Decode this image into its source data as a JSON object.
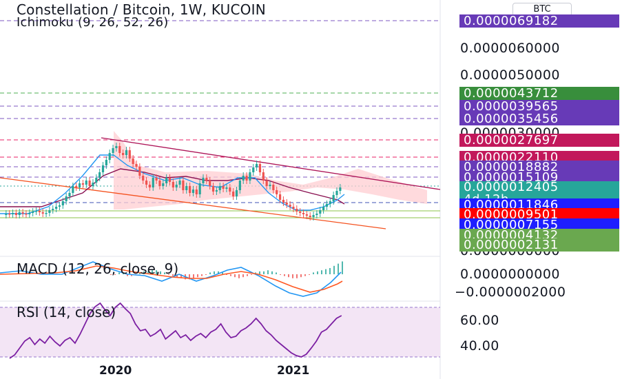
{
  "chart": {
    "title": "Constellation / Bitcoin, 1W, KUCOIN",
    "indicator": "Ichimoku (9, 26, 52, 26)",
    "currency_button": "BTC",
    "macd_label": "MACD (12, 26, close, 9)",
    "rsi_label": "RSI (14, close)"
  },
  "price_axis": {
    "labels": [
      "0.0000060000",
      "0.0000050000",
      "0.0000030000",
      "0.0000000000"
    ],
    "partial_lower": "0.0000000000",
    "macd_labels": [
      "0.0000000000",
      "−0.0000002000"
    ],
    "rsi_labels": [
      "60.00",
      "40.00"
    ]
  },
  "price_tags": [
    {
      "text": "0.0000069182",
      "color": "#673ab7"
    },
    {
      "text": "0.0000043712",
      "color": "#388e3c"
    },
    {
      "text": "0.0000039565",
      "color": "#673ab7"
    },
    {
      "text": "0.0000035456",
      "color": "#673ab7"
    },
    {
      "text": "0.0000027697",
      "color": "#c2185b"
    },
    {
      "text": "0.0000022110",
      "color": "#c2185b"
    },
    {
      "text": "0.0000018882",
      "color": "#673ab7"
    },
    {
      "text": "0.0000015109",
      "color": "#673ab7"
    },
    {
      "text": "0.0000012405",
      "sub": "4d 12h",
      "color": "#26a69a"
    },
    {
      "text": "0.0000011846",
      "color": "#1e1eff"
    },
    {
      "text": "0.0000009501",
      "color": "#ff0000"
    },
    {
      "text": "0.0000007155",
      "color": "#1e1eff"
    },
    {
      "text": "0.0000004132",
      "color": "#6aa84f"
    },
    {
      "text": "0.0000002131",
      "color": "#6aa84f"
    }
  ],
  "time_axis": [
    "2020",
    "2021"
  ],
  "colors": {
    "up": "#26a69a",
    "down": "#ef5350",
    "channel": "#880e4f",
    "kumo": "#ffcdd2",
    "macd": "#2196f3",
    "signal": "#ff5722",
    "rsi": "#7b1fa2",
    "rsi_bg": "#f3e5f5"
  }
}
